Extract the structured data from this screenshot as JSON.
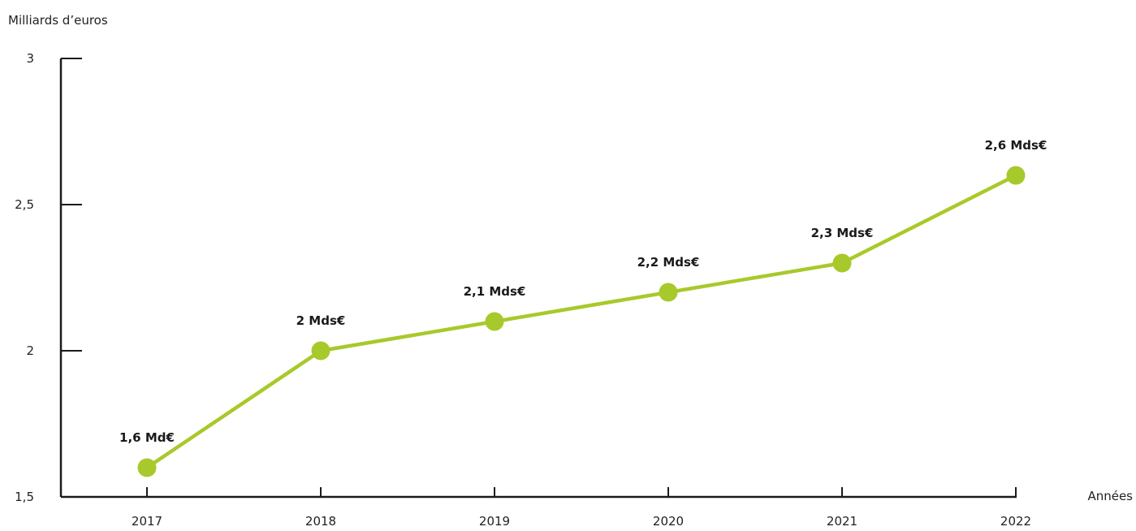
{
  "chart_data": {
    "type": "line",
    "title": "",
    "ylabel": "Milliards d’euros",
    "xlabel": "Années",
    "x": [
      "2017",
      "2018",
      "2019",
      "2020",
      "2021",
      "2022"
    ],
    "y_ticks": [
      1.5,
      2,
      2.5,
      3
    ],
    "y_tick_labels": [
      "1,5",
      "2",
      "2,5",
      "3"
    ],
    "ylim": [
      1.5,
      3
    ],
    "grid": false,
    "legend": "none",
    "series": [
      {
        "values": [
          1.6,
          2.0,
          2.1,
          2.2,
          2.3,
          2.6
        ],
        "data_labels": [
          "1,6 Md€",
          "2 Mds€",
          "2,1 Mds€",
          "2,2 Mds€",
          "2,3 Mds€",
          "2,6 Mds€"
        ],
        "color": "#a8c92b"
      }
    ]
  }
}
